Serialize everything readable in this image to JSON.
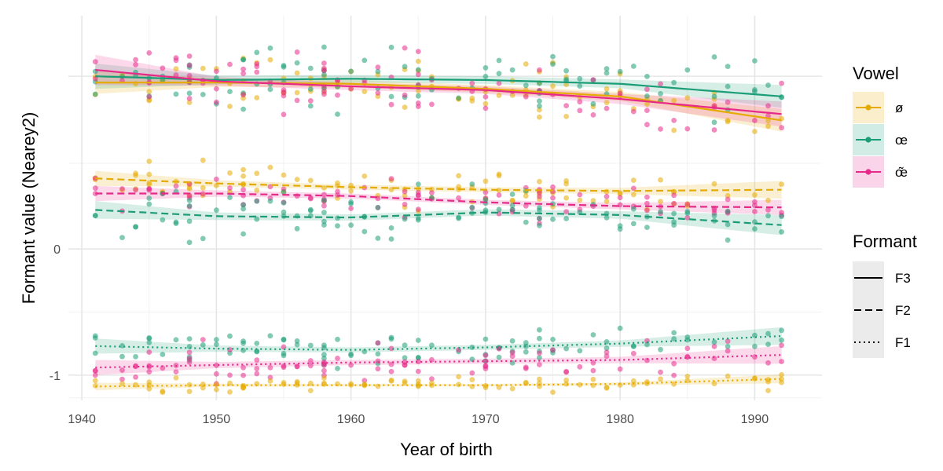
{
  "chart_data": {
    "type": "scatter",
    "xlabel": "Year of birth",
    "ylabel": "Formant value (Nearey2)",
    "xlim": [
      1939,
      1995
    ],
    "ylim": [
      -1.2,
      1.85
    ],
    "x_ticks": [
      1940,
      1950,
      1960,
      1970,
      1980,
      1990
    ],
    "y_ticks": [
      {
        "value": 0,
        "label": "0"
      },
      {
        "value": -1,
        "label": "-1"
      }
    ],
    "y_major_gridlines": [
      -1,
      0,
      1.37
    ],
    "y_minor_gridlines": [
      -1.18,
      -0.5,
      0.68
    ],
    "grid": true,
    "legend_position": "right",
    "legends": [
      {
        "title": "Vowel",
        "items": [
          {
            "label": "ø",
            "color": "#E6AB02"
          },
          {
            "label": "œ",
            "color": "#1B9E77"
          },
          {
            "label": "œ̃",
            "color": "#E7298A"
          }
        ]
      },
      {
        "title": "Formant",
        "items": [
          {
            "label": "F3",
            "linestyle": "solid"
          },
          {
            "label": "F2",
            "linestyle": "dashed"
          },
          {
            "label": "F1",
            "linestyle": "dotted"
          }
        ]
      }
    ],
    "series": [
      {
        "vowel": "ø",
        "formant": "F3",
        "color": "#E6AB02",
        "spread": 0.1,
        "seed": 11,
        "trend_x": [
          1941,
          1950,
          1960,
          1970,
          1980,
          1992
        ],
        "trend_y": [
          1.32,
          1.32,
          1.31,
          1.27,
          1.21,
          1.02
        ],
        "band_halfwidth": [
          0.09,
          0.035,
          0.03,
          0.03,
          0.035,
          0.09
        ]
      },
      {
        "vowel": "œ",
        "formant": "F3",
        "color": "#1B9E77",
        "spread": 0.11,
        "seed": 23,
        "trend_x": [
          1941,
          1950,
          1960,
          1970,
          1980,
          1992
        ],
        "trend_y": [
          1.37,
          1.34,
          1.35,
          1.34,
          1.31,
          1.21
        ],
        "band_halfwidth": [
          0.1,
          0.035,
          0.03,
          0.03,
          0.035,
          0.09
        ]
      },
      {
        "vowel": "œ̃",
        "formant": "F3",
        "color": "#E7298A",
        "spread": 0.12,
        "seed": 37,
        "trend_x": [
          1941,
          1950,
          1960,
          1970,
          1980,
          1992
        ],
        "trend_y": [
          1.42,
          1.33,
          1.29,
          1.26,
          1.19,
          1.07
        ],
        "band_halfwidth": [
          0.12,
          0.035,
          0.03,
          0.03,
          0.04,
          0.1
        ]
      },
      {
        "vowel": "ø",
        "formant": "F2",
        "color": "#E6AB02",
        "spread": 0.07,
        "seed": 41,
        "trend_x": [
          1941,
          1950,
          1960,
          1970,
          1980,
          1992
        ],
        "trend_y": [
          0.56,
          0.52,
          0.49,
          0.47,
          0.46,
          0.47
        ],
        "band_halfwidth": [
          0.06,
          0.025,
          0.02,
          0.02,
          0.025,
          0.07
        ]
      },
      {
        "vowel": "œ̃",
        "formant": "F2",
        "color": "#E7298A",
        "spread": 0.07,
        "seed": 53,
        "trend_x": [
          1941,
          1950,
          1960,
          1970,
          1980,
          1992
        ],
        "trend_y": [
          0.44,
          0.44,
          0.42,
          0.37,
          0.34,
          0.33
        ],
        "band_halfwidth": [
          0.06,
          0.025,
          0.02,
          0.02,
          0.025,
          0.06
        ]
      },
      {
        "vowel": "œ",
        "formant": "F2",
        "color": "#1B9E77",
        "spread": 0.09,
        "seed": 67,
        "trend_x": [
          1941,
          1950,
          1960,
          1970,
          1980,
          1992
        ],
        "trend_y": [
          0.31,
          0.26,
          0.25,
          0.29,
          0.27,
          0.19
        ],
        "band_halfwidth": [
          0.07,
          0.03,
          0.025,
          0.025,
          0.03,
          0.08
        ]
      },
      {
        "vowel": "œ",
        "formant": "F1",
        "color": "#1B9E77",
        "spread": 0.06,
        "seed": 79,
        "trend_x": [
          1941,
          1950,
          1960,
          1970,
          1980,
          1992
        ],
        "trend_y": [
          -0.77,
          -0.79,
          -0.8,
          -0.78,
          -0.75,
          -0.69
        ],
        "band_halfwidth": [
          0.06,
          0.025,
          0.02,
          0.02,
          0.025,
          0.07
        ]
      },
      {
        "vowel": "œ̃",
        "formant": "F1",
        "color": "#E7298A",
        "spread": 0.07,
        "seed": 83,
        "trend_x": [
          1941,
          1950,
          1960,
          1970,
          1980,
          1992
        ],
        "trend_y": [
          -0.94,
          -0.92,
          -0.9,
          -0.89,
          -0.88,
          -0.84
        ],
        "band_halfwidth": [
          0.06,
          0.025,
          0.02,
          0.02,
          0.025,
          0.07
        ]
      },
      {
        "vowel": "ø",
        "formant": "F1",
        "color": "#E6AB02",
        "spread": 0.03,
        "seed": 97,
        "trend_x": [
          1941,
          1950,
          1960,
          1970,
          1980,
          1992
        ],
        "trend_y": [
          -1.09,
          -1.08,
          -1.08,
          -1.08,
          -1.07,
          -1.03
        ],
        "band_halfwidth": [
          0.03,
          0.012,
          0.01,
          0.01,
          0.012,
          0.035
        ]
      }
    ],
    "speaker_birth_years": [
      1941,
      1941,
      1943,
      1944,
      1945,
      1945,
      1946,
      1947,
      1948,
      1948,
      1949,
      1950,
      1951,
      1952,
      1952,
      1953,
      1954,
      1955,
      1955,
      1956,
      1957,
      1958,
      1958,
      1959,
      1960,
      1961,
      1962,
      1963,
      1964,
      1965,
      1965,
      1966,
      1968,
      1969,
      1970,
      1970,
      1971,
      1972,
      1973,
      1974,
      1974,
      1975,
      1976,
      1977,
      1978,
      1979,
      1980,
      1981,
      1982,
      1983,
      1984,
      1985,
      1987,
      1988,
      1990,
      1991,
      1992
    ]
  }
}
